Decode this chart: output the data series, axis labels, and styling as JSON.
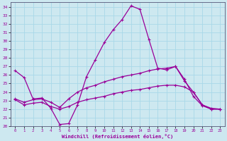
{
  "xlabel": "Windchill (Refroidissement éolien,°C)",
  "background_color": "#cde8f0",
  "grid_color": "#a8d8e8",
  "line_color": "#990099",
  "xlim": [
    -0.5,
    23.5
  ],
  "ylim": [
    20,
    34.5
  ],
  "yticks": [
    20,
    21,
    22,
    23,
    24,
    25,
    26,
    27,
    28,
    29,
    30,
    31,
    32,
    33,
    34
  ],
  "xticks": [
    0,
    1,
    2,
    3,
    4,
    5,
    6,
    7,
    8,
    9,
    10,
    11,
    12,
    13,
    14,
    15,
    16,
    17,
    18,
    19,
    20,
    21,
    22,
    23
  ],
  "curve1_x": [
    0,
    1,
    2,
    3,
    4,
    5,
    6,
    7,
    8,
    9,
    10,
    11,
    12,
    13,
    14,
    15,
    16,
    17,
    18,
    19,
    20,
    21,
    22,
    23
  ],
  "curve1_y": [
    26.5,
    25.7,
    23.2,
    23.3,
    22.1,
    20.2,
    20.3,
    22.5,
    25.8,
    27.8,
    29.8,
    31.3,
    32.5,
    34.1,
    33.7,
    30.2,
    26.8,
    26.6,
    27.0,
    25.3,
    24.0,
    22.5,
    22.1,
    22.0
  ],
  "curve2_x": [
    0,
    1,
    2,
    3,
    4,
    5,
    6,
    7,
    8,
    9,
    10,
    11,
    12,
    13,
    14,
    15,
    16,
    17,
    18,
    19,
    20,
    21,
    22,
    23
  ],
  "curve2_y": [
    23.2,
    22.8,
    23.1,
    23.2,
    22.8,
    22.2,
    23.2,
    24.0,
    24.5,
    24.8,
    25.2,
    25.5,
    25.8,
    26.0,
    26.2,
    26.5,
    26.7,
    26.8,
    27.0,
    25.5,
    23.5,
    22.4,
    22.0,
    22.0
  ],
  "curve3_x": [
    0,
    1,
    2,
    3,
    4,
    5,
    6,
    7,
    8,
    9,
    10,
    11,
    12,
    13,
    14,
    15,
    16,
    17,
    18,
    19,
    20,
    21,
    22,
    23
  ],
  "curve3_y": [
    23.1,
    22.5,
    22.7,
    22.8,
    22.3,
    22.0,
    22.3,
    22.8,
    23.1,
    23.3,
    23.5,
    23.8,
    24.0,
    24.2,
    24.3,
    24.5,
    24.7,
    24.8,
    24.8,
    24.6,
    24.0,
    22.5,
    22.0,
    22.0
  ]
}
